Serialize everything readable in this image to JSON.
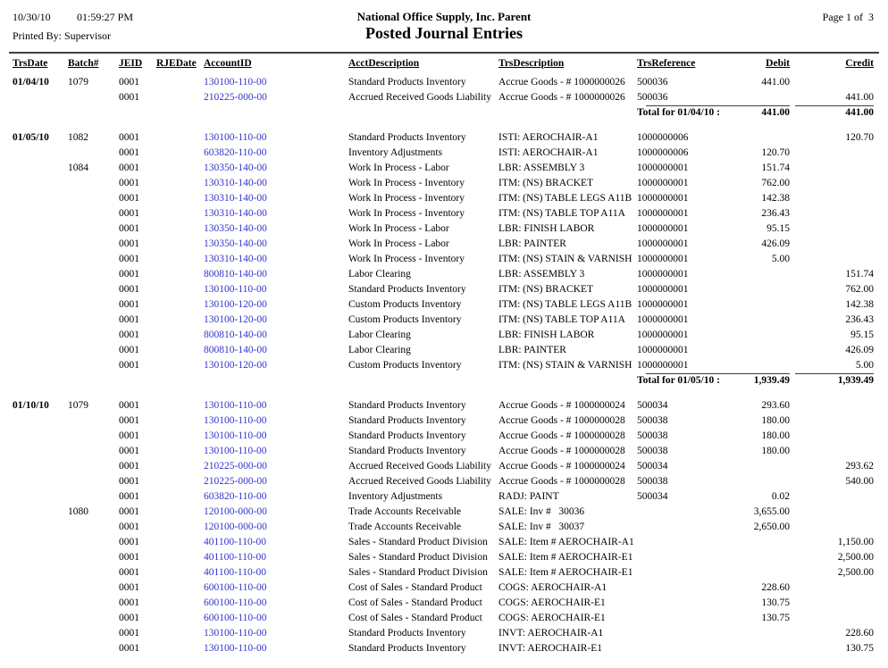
{
  "report": {
    "date": "10/30/10",
    "time": "01:59:27 PM",
    "printed_by": "Printed By: Supervisor",
    "company": "National Office Supply, Inc. Parent",
    "title": "Posted Journal Entries",
    "page_label": "Page 1 of  3"
  },
  "colors": {
    "link": "#3333cc",
    "text": "#000000",
    "rule": "#3f3f3f"
  },
  "table": {
    "columns": [
      "TrsDate",
      "Batch#",
      "JEID",
      "RJEDate",
      "AccountID",
      "AcctDescription",
      "TrsDescription",
      "TrsReference",
      "Debit",
      "Credit"
    ],
    "sections": [
      {
        "rows": [
          {
            "trsdate": "01/04/10",
            "batch": "1079",
            "jeid": "0001",
            "rjedate": "",
            "account": "130100-110-00",
            "acct": "Standard Products Inventory",
            "desc": "Accrue Goods - # 1000000026",
            "ref": "500036",
            "debit": "441.00",
            "credit": ""
          },
          {
            "trsdate": "",
            "batch": "",
            "jeid": "0001",
            "rjedate": "",
            "account": "210225-000-00",
            "acct": "Accrued Received Goods Liability",
            "desc": "Accrue Goods - # 1000000026",
            "ref": "500036",
            "debit": "",
            "credit": "441.00"
          }
        ],
        "total": {
          "label": "Total for 01/04/10 :",
          "debit": "441.00",
          "credit": "441.00"
        }
      },
      {
        "rows": [
          {
            "trsdate": "01/05/10",
            "batch": "1082",
            "jeid": "0001",
            "rjedate": "",
            "account": "130100-110-00",
            "acct": "Standard Products Inventory",
            "desc": "ISTI: AEROCHAIR-A1",
            "ref": "1000000006",
            "debit": "",
            "credit": "120.70"
          },
          {
            "trsdate": "",
            "batch": "",
            "jeid": "0001",
            "rjedate": "",
            "account": "603820-110-00",
            "acct": "Inventory Adjustments",
            "desc": "ISTI: AEROCHAIR-A1",
            "ref": "1000000006",
            "debit": "120.70",
            "credit": ""
          },
          {
            "trsdate": "",
            "batch": "1084",
            "jeid": "0001",
            "rjedate": "",
            "account": "130350-140-00",
            "acct": "Work In Process - Labor",
            "desc": "LBR: ASSEMBLY 3",
            "ref": "1000000001",
            "debit": "151.74",
            "credit": ""
          },
          {
            "trsdate": "",
            "batch": "",
            "jeid": "0001",
            "rjedate": "",
            "account": "130310-140-00",
            "acct": "Work In Process - Inventory",
            "desc": "ITM: (NS) BRACKET",
            "ref": "1000000001",
            "debit": "762.00",
            "credit": ""
          },
          {
            "trsdate": "",
            "batch": "",
            "jeid": "0001",
            "rjedate": "",
            "account": "130310-140-00",
            "acct": "Work In Process - Inventory",
            "desc": "ITM: (NS) TABLE LEGS A11B",
            "ref": "1000000001",
            "debit": "142.38",
            "credit": ""
          },
          {
            "trsdate": "",
            "batch": "",
            "jeid": "0001",
            "rjedate": "",
            "account": "130310-140-00",
            "acct": "Work In Process - Inventory",
            "desc": "ITM: (NS) TABLE TOP A11A",
            "ref": "1000000001",
            "debit": "236.43",
            "credit": ""
          },
          {
            "trsdate": "",
            "batch": "",
            "jeid": "0001",
            "rjedate": "",
            "account": "130350-140-00",
            "acct": "Work In Process - Labor",
            "desc": "LBR: FINISH LABOR",
            "ref": "1000000001",
            "debit": "95.15",
            "credit": ""
          },
          {
            "trsdate": "",
            "batch": "",
            "jeid": "0001",
            "rjedate": "",
            "account": "130350-140-00",
            "acct": "Work In Process - Labor",
            "desc": "LBR: PAINTER",
            "ref": "1000000001",
            "debit": "426.09",
            "credit": ""
          },
          {
            "trsdate": "",
            "batch": "",
            "jeid": "0001",
            "rjedate": "",
            "account": "130310-140-00",
            "acct": "Work In Process - Inventory",
            "desc": "ITM: (NS) STAIN & VARNISH",
            "ref": "1000000001",
            "debit": "5.00",
            "credit": ""
          },
          {
            "trsdate": "",
            "batch": "",
            "jeid": "0001",
            "rjedate": "",
            "account": "800810-140-00",
            "acct": "Labor Clearing",
            "desc": "LBR: ASSEMBLY 3",
            "ref": "1000000001",
            "debit": "",
            "credit": "151.74"
          },
          {
            "trsdate": "",
            "batch": "",
            "jeid": "0001",
            "rjedate": "",
            "account": "130100-110-00",
            "acct": "Standard Products Inventory",
            "desc": "ITM: (NS) BRACKET",
            "ref": "1000000001",
            "debit": "",
            "credit": "762.00"
          },
          {
            "trsdate": "",
            "batch": "",
            "jeid": "0001",
            "rjedate": "",
            "account": "130100-120-00",
            "acct": "Custom Products Inventory",
            "desc": "ITM: (NS) TABLE LEGS A11B",
            "ref": "1000000001",
            "debit": "",
            "credit": "142.38"
          },
          {
            "trsdate": "",
            "batch": "",
            "jeid": "0001",
            "rjedate": "",
            "account": "130100-120-00",
            "acct": "Custom Products Inventory",
            "desc": "ITM: (NS) TABLE TOP A11A",
            "ref": "1000000001",
            "debit": "",
            "credit": "236.43"
          },
          {
            "trsdate": "",
            "batch": "",
            "jeid": "0001",
            "rjedate": "",
            "account": "800810-140-00",
            "acct": "Labor Clearing",
            "desc": "LBR: FINISH LABOR",
            "ref": "1000000001",
            "debit": "",
            "credit": "95.15"
          },
          {
            "trsdate": "",
            "batch": "",
            "jeid": "0001",
            "rjedate": "",
            "account": "800810-140-00",
            "acct": "Labor Clearing",
            "desc": "LBR: PAINTER",
            "ref": "1000000001",
            "debit": "",
            "credit": "426.09"
          },
          {
            "trsdate": "",
            "batch": "",
            "jeid": "0001",
            "rjedate": "",
            "account": "130100-120-00",
            "acct": "Custom Products Inventory",
            "desc": "ITM: (NS) STAIN & VARNISH",
            "ref": "1000000001",
            "debit": "",
            "credit": "5.00"
          }
        ],
        "total": {
          "label": "Total for 01/05/10 :",
          "debit": "1,939.49",
          "credit": "1,939.49"
        }
      },
      {
        "rows": [
          {
            "trsdate": "01/10/10",
            "batch": "1079",
            "jeid": "0001",
            "rjedate": "",
            "account": "130100-110-00",
            "acct": "Standard Products Inventory",
            "desc": "Accrue Goods - # 1000000024",
            "ref": "500034",
            "debit": "293.60",
            "credit": ""
          },
          {
            "trsdate": "",
            "batch": "",
            "jeid": "0001",
            "rjedate": "",
            "account": "130100-110-00",
            "acct": "Standard Products Inventory",
            "desc": "Accrue Goods - # 1000000028",
            "ref": "500038",
            "debit": "180.00",
            "credit": ""
          },
          {
            "trsdate": "",
            "batch": "",
            "jeid": "0001",
            "rjedate": "",
            "account": "130100-110-00",
            "acct": "Standard Products Inventory",
            "desc": "Accrue Goods - # 1000000028",
            "ref": "500038",
            "debit": "180.00",
            "credit": ""
          },
          {
            "trsdate": "",
            "batch": "",
            "jeid": "0001",
            "rjedate": "",
            "account": "130100-110-00",
            "acct": "Standard Products Inventory",
            "desc": "Accrue Goods - # 1000000028",
            "ref": "500038",
            "debit": "180.00",
            "credit": ""
          },
          {
            "trsdate": "",
            "batch": "",
            "jeid": "0001",
            "rjedate": "",
            "account": "210225-000-00",
            "acct": "Accrued Received Goods Liability",
            "desc": "Accrue Goods - # 1000000024",
            "ref": "500034",
            "debit": "",
            "credit": "293.62"
          },
          {
            "trsdate": "",
            "batch": "",
            "jeid": "0001",
            "rjedate": "",
            "account": "210225-000-00",
            "acct": "Accrued Received Goods Liability",
            "desc": "Accrue Goods - # 1000000028",
            "ref": "500038",
            "debit": "",
            "credit": "540.00"
          },
          {
            "trsdate": "",
            "batch": "",
            "jeid": "0001",
            "rjedate": "",
            "account": "603820-110-00",
            "acct": "Inventory Adjustments",
            "desc": "RADJ: PAINT",
            "ref": "500034",
            "debit": "0.02",
            "credit": ""
          },
          {
            "trsdate": "",
            "batch": "1080",
            "jeid": "0001",
            "rjedate": "",
            "account": "120100-000-00",
            "acct": "Trade Accounts Receivable",
            "desc": "SALE: Inv #   30036",
            "ref": "",
            "debit": "3,655.00",
            "credit": ""
          },
          {
            "trsdate": "",
            "batch": "",
            "jeid": "0001",
            "rjedate": "",
            "account": "120100-000-00",
            "acct": "Trade Accounts Receivable",
            "desc": "SALE: Inv #   30037",
            "ref": "",
            "debit": "2,650.00",
            "credit": ""
          },
          {
            "trsdate": "",
            "batch": "",
            "jeid": "0001",
            "rjedate": "",
            "account": "401100-110-00",
            "acct": "Sales - Standard Product Division",
            "desc": "SALE: Item # AEROCHAIR-A1",
            "ref": "",
            "debit": "",
            "credit": "1,150.00"
          },
          {
            "trsdate": "",
            "batch": "",
            "jeid": "0001",
            "rjedate": "",
            "account": "401100-110-00",
            "acct": "Sales - Standard Product Division",
            "desc": "SALE: Item # AEROCHAIR-E1",
            "ref": "",
            "debit": "",
            "credit": "2,500.00"
          },
          {
            "trsdate": "",
            "batch": "",
            "jeid": "0001",
            "rjedate": "",
            "account": "401100-110-00",
            "acct": "Sales - Standard Product Division",
            "desc": "SALE: Item # AEROCHAIR-E1",
            "ref": "",
            "debit": "",
            "credit": "2,500.00"
          },
          {
            "trsdate": "",
            "batch": "",
            "jeid": "0001",
            "rjedate": "",
            "account": "600100-110-00",
            "acct": "Cost of Sales - Standard Product",
            "desc": "COGS: AEROCHAIR-A1",
            "ref": "",
            "debit": "228.60",
            "credit": ""
          },
          {
            "trsdate": "",
            "batch": "",
            "jeid": "0001",
            "rjedate": "",
            "account": "600100-110-00",
            "acct": "Cost of Sales - Standard Product",
            "desc": "COGS: AEROCHAIR-E1",
            "ref": "",
            "debit": "130.75",
            "credit": ""
          },
          {
            "trsdate": "",
            "batch": "",
            "jeid": "0001",
            "rjedate": "",
            "account": "600100-110-00",
            "acct": "Cost of Sales - Standard Product",
            "desc": "COGS: AEROCHAIR-E1",
            "ref": "",
            "debit": "130.75",
            "credit": ""
          },
          {
            "trsdate": "",
            "batch": "",
            "jeid": "0001",
            "rjedate": "",
            "account": "130100-110-00",
            "acct": "Standard Products Inventory",
            "desc": "INVT: AEROCHAIR-A1",
            "ref": "",
            "debit": "",
            "credit": "228.60"
          },
          {
            "trsdate": "",
            "batch": "",
            "jeid": "0001",
            "rjedate": "",
            "account": "130100-110-00",
            "acct": "Standard Products Inventory",
            "desc": "INVT: AEROCHAIR-E1",
            "ref": "",
            "debit": "",
            "credit": "130.75"
          }
        ],
        "total": null
      }
    ]
  }
}
